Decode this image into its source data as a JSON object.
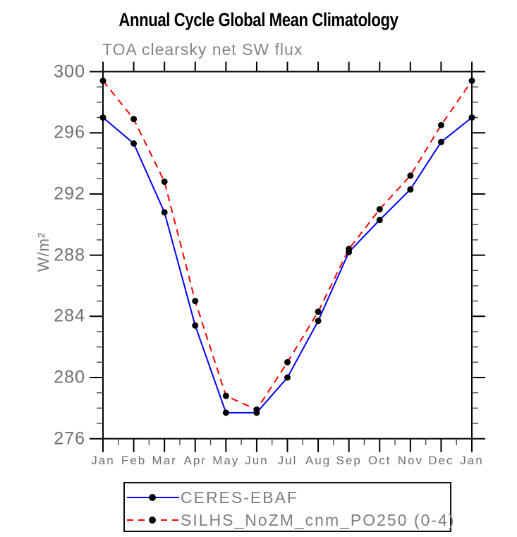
{
  "page": {
    "background": "#ffffff"
  },
  "colors": {
    "title_text": "#000000",
    "muted_text": "#7a7a7a",
    "axis": "#000000",
    "series_blue": "#0000ff",
    "series_red": "#ff0000",
    "marker": "#000000"
  },
  "chart_data": {
    "type": "line",
    "title": "Annual Cycle Global Mean Climatology",
    "subtitle": "TOA clearsky net SW flux",
    "xlabel": "",
    "ylabel": "W/m²",
    "categories": [
      "Jan",
      "Feb",
      "Mar",
      "Apr",
      "May",
      "Jun",
      "Jul",
      "Aug",
      "Sep",
      "Oct",
      "Nov",
      "Dec",
      "Jan"
    ],
    "ylim": [
      276,
      300
    ],
    "y_major_step": 4,
    "y_minor_step": 1,
    "grid": false,
    "legend_position": "bottom-box",
    "series": [
      {
        "name": "CERES-EBAF",
        "color": "#0000ff",
        "line_style": "solid",
        "marker": "filled-circle",
        "marker_color": "#000000",
        "values": [
          297.0,
          295.3,
          290.8,
          283.4,
          277.7,
          277.7,
          280.0,
          283.7,
          288.2,
          290.3,
          292.3,
          295.4,
          297.0
        ]
      },
      {
        "name": "SILHS_NoZM_cnm_PO250 (0-4)",
        "color": "#ff0000",
        "line_style": "dashed",
        "marker": "filled-circle",
        "marker_color": "#000000",
        "values": [
          299.4,
          296.9,
          292.8,
          285.0,
          278.8,
          277.9,
          281.0,
          284.3,
          288.4,
          291.0,
          293.2,
          296.5,
          299.4
        ]
      }
    ]
  }
}
